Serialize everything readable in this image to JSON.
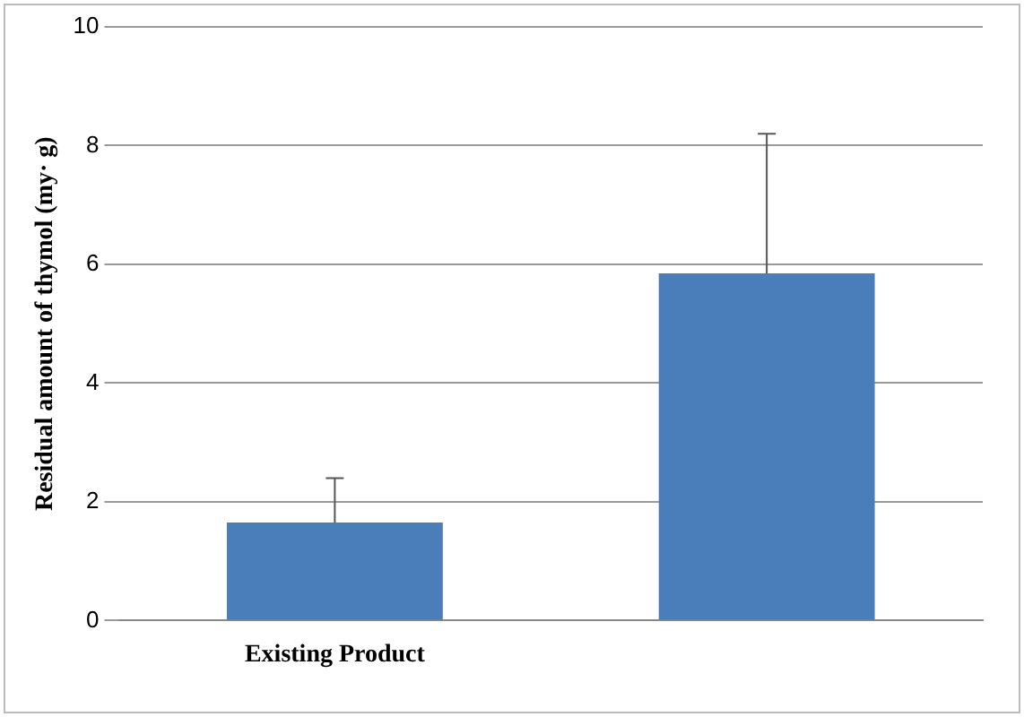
{
  "chart_data": {
    "type": "bar",
    "ylabel": "Residual amount of thymol (my· g)",
    "categories": [
      "Existing Product",
      null
    ],
    "values": [
      1.65,
      5.85
    ],
    "color": "#4a7ebb",
    "errors": [
      0.75,
      2.35
    ],
    "ylim": [
      0,
      10
    ],
    "yticks": [
      0,
      2,
      4,
      6,
      8,
      10
    ],
    "grid": "y",
    "legend": false
  }
}
